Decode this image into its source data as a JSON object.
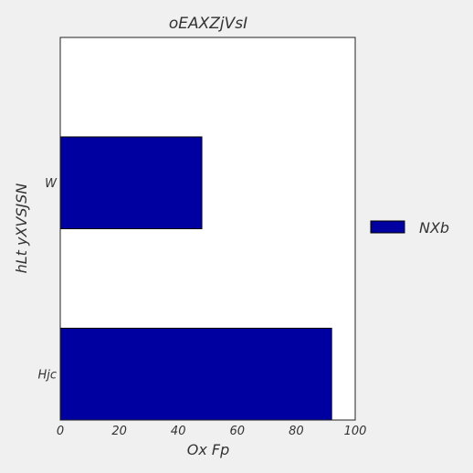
{
  "chart_data": {
    "type": "bar",
    "orientation": "horizontal",
    "title": "oEAXZjVsI",
    "xlabel": "Ox Fp",
    "ylabel": "hLt yXVSJSN",
    "categories": [
      "Hjc",
      "W"
    ],
    "series": [
      {
        "name": "NXb",
        "values": [
          92,
          48
        ],
        "color": "#0000a0"
      }
    ],
    "xlim": [
      0,
      100
    ],
    "xticks": [
      "0",
      "20",
      "40",
      "60",
      "80",
      "100"
    ],
    "grid": false,
    "legend_position": "right"
  }
}
